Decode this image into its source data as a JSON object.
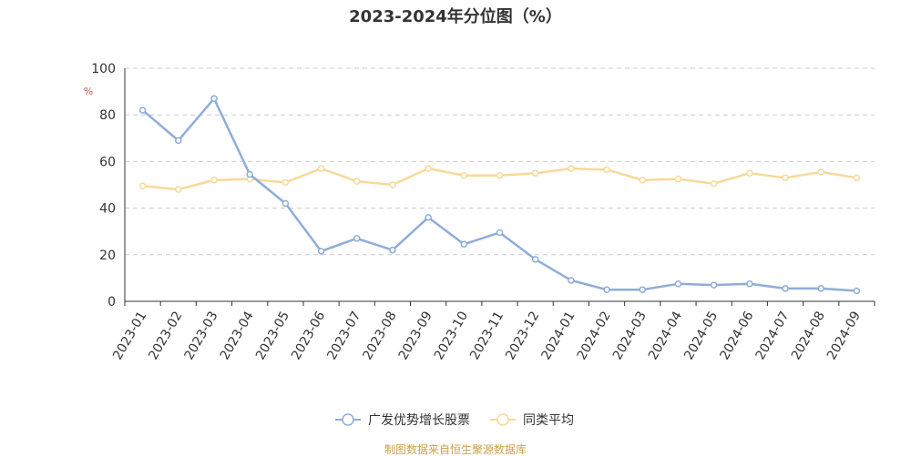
{
  "colors": {
    "series1": "#8fadd9",
    "series2": "#f8d99a",
    "grid": "#cccccc",
    "axis": "#333333",
    "unit": "#e05050",
    "source": "#c9a24a"
  },
  "chart_data": {
    "type": "line",
    "title": "2023-2024年分位图（%）",
    "ylabel": "%",
    "ylim": [
      0,
      100
    ],
    "yticks": [
      0,
      20,
      40,
      60,
      80,
      100
    ],
    "grid": true,
    "legend_position": "bottom",
    "categories": [
      "2023-01",
      "2023-02",
      "2023-03",
      "2023-04",
      "2023-05",
      "2023-06",
      "2023-07",
      "2023-08",
      "2023-09",
      "2023-10",
      "2023-11",
      "2023-12",
      "2024-01",
      "2024-02",
      "2024-03",
      "2024-04",
      "2024-05",
      "2024-06",
      "2024-07",
      "2024-08",
      "2024-09"
    ],
    "series": [
      {
        "name": "广发优势增长股票",
        "values": [
          82,
          69,
          87,
          54.5,
          42,
          21.5,
          27,
          22,
          36,
          24.5,
          29.5,
          18,
          9,
          5,
          5,
          7.5,
          7,
          7.5,
          5.5,
          5.5,
          4.5
        ]
      },
      {
        "name": "同类平均",
        "values": [
          49.5,
          48,
          52,
          52.5,
          51,
          57,
          51.5,
          50,
          57,
          54,
          54,
          55,
          57,
          56.5,
          52,
          52.5,
          50.5,
          55,
          53,
          55.5,
          53
        ]
      }
    ]
  },
  "source_note": "制图数据来自恒生聚源数据库"
}
